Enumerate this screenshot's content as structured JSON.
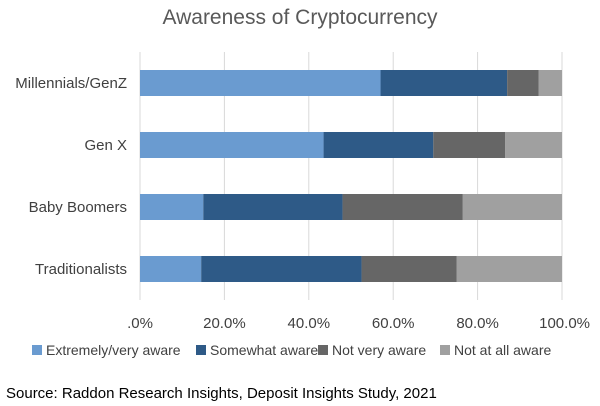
{
  "chart_data": {
    "type": "bar",
    "orientation": "horizontal",
    "stacked": true,
    "title": "Awareness of Cryptocurrency",
    "categories": [
      "Millennials/GenZ",
      "Gen X",
      "Baby Boomers",
      "Traditionalists"
    ],
    "series": [
      {
        "name": "Extremely/very aware",
        "color": "#6a9bd0",
        "values": [
          57,
          43.5,
          15,
          14.5
        ]
      },
      {
        "name": "Somewhat aware",
        "color": "#2e5a87",
        "values": [
          30,
          26,
          33,
          38
        ]
      },
      {
        "name": "Not very aware",
        "color": "#666666",
        "values": [
          7.5,
          17,
          28.5,
          22.5
        ]
      },
      {
        "name": "Not at all aware",
        "color": "#a0a0a0",
        "values": [
          5.5,
          13.5,
          23.5,
          25
        ]
      }
    ],
    "xlim": [
      0,
      100
    ],
    "xticks": [
      ".0%",
      "20.0%",
      "40.0%",
      "60.0%",
      "80.0%",
      "100.0%"
    ],
    "grid": true,
    "legend_position": "bottom"
  },
  "source": "Source: Raddon Research Insights, Deposit Insights Study, 2021"
}
